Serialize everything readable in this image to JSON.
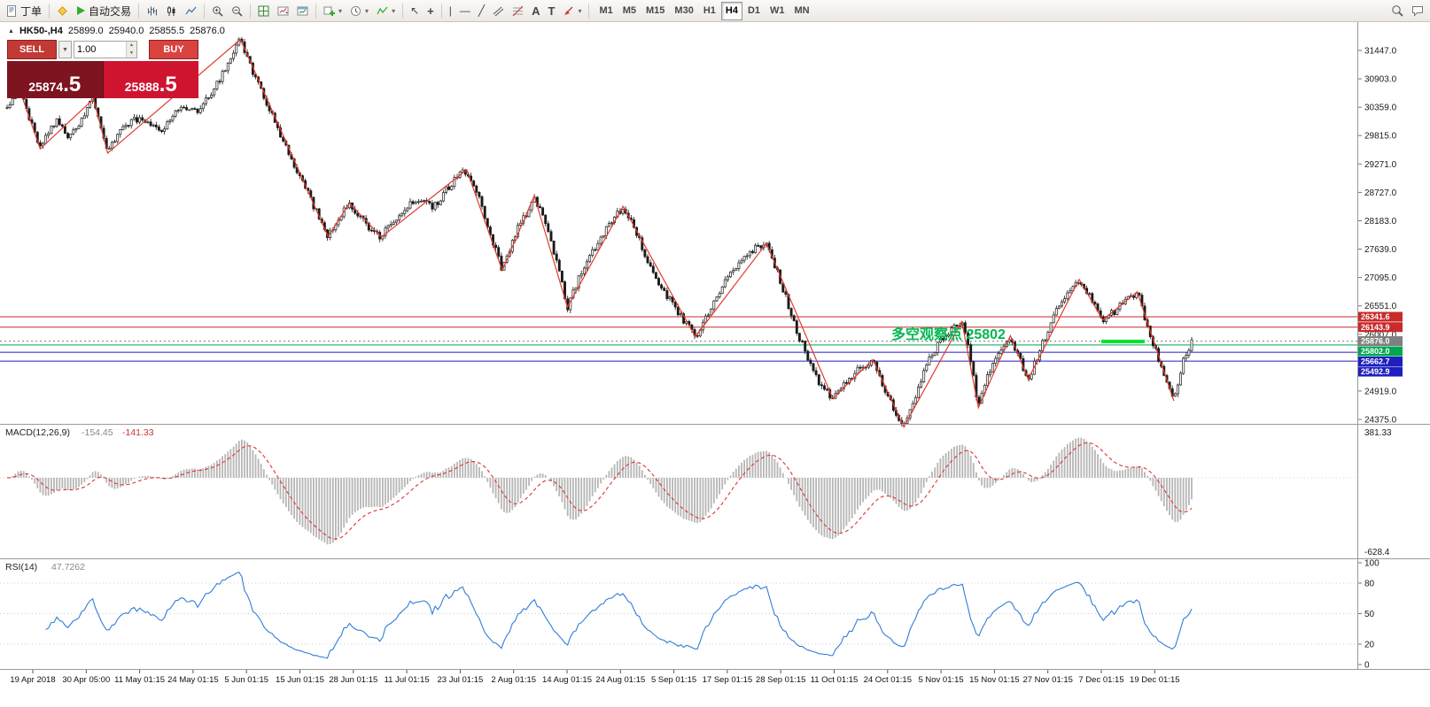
{
  "toolbar": {
    "new_order_label": "丁单",
    "autotrading_label": "自动交易",
    "timeframes": [
      "M1",
      "M5",
      "M15",
      "M30",
      "H1",
      "H4",
      "D1",
      "W1",
      "MN"
    ],
    "active_timeframe": "H4"
  },
  "trade_panel": {
    "sell_label": "SELL",
    "buy_label": "BUY",
    "volume": "1.00",
    "sell_price_int": "25874",
    "sell_price_frac": ".5",
    "buy_price_int": "25888",
    "buy_price_frac": ".5"
  },
  "chart_header": {
    "collapse_arrow": "▲",
    "symbol": "HK50-,H4",
    "open": "25899.0",
    "high": "25940.0",
    "low": "25855.5",
    "close": "25876.0"
  },
  "indicators": {
    "macd_name": "MACD(12,26,9)",
    "macd_value": "-154.45",
    "macd_signal": "-141.33",
    "rsi_name": "RSI(14)",
    "rsi_value": "47.7262"
  },
  "annotation": {
    "text": "多空观察点 25802",
    "color": "#00b850"
  },
  "axes": {
    "price_ticks": [
      "31447.0",
      "30903.0",
      "30359.0",
      "29815.0",
      "29271.0",
      "28727.0",
      "28183.0",
      "27639.0",
      "27095.0",
      "26551.0",
      "26007.0",
      "25463.0",
      "24919.0",
      "24375.0"
    ],
    "macd_ticks": [
      "381.33",
      "-628.4"
    ],
    "rsi_ticks": [
      "100",
      "80",
      "50",
      "20",
      "0"
    ],
    "rsi_levels": [
      80,
      50,
      20
    ],
    "time_labels": [
      "19 Apr 2018",
      "30 Apr 05:00",
      "11 May 01:15",
      "24 May 01:15",
      "5 Jun 01:15",
      "15 Jun 01:15",
      "28 Jun 01:15",
      "11 Jul 01:15",
      "23 Jul 01:15",
      "2 Aug 01:15",
      "14 Aug 01:15",
      "24 Aug 01:15",
      "5 Sep 01:15",
      "17 Sep 01:15",
      "28 Sep 01:15",
      "11 Oct 01:15",
      "24 Oct 01:15",
      "5 Nov 01:15",
      "15 Nov 01:15",
      "27 Nov 01:15",
      "7 Dec 01:15",
      "19 Dec 01:15"
    ]
  },
  "levels": [
    {
      "price": 26341.6,
      "tag": "26341.6",
      "color": "#c92b2b",
      "style": "solid"
    },
    {
      "price": 26143.9,
      "tag": "26143.9",
      "color": "#c92b2b",
      "style": "solid"
    },
    {
      "price": 25876.0,
      "tag": "25876.0",
      "color": "#808080",
      "style": "dotted"
    },
    {
      "price": 25802.0,
      "tag": "25802.0",
      "color": "#00a651",
      "style": "solid"
    },
    {
      "price": 25662.7,
      "tag": "25662.7",
      "color": "#1f1fbf",
      "style": "solid"
    },
    {
      "price": 25492.9,
      "tag": "25492.9",
      "color": "#1f1fbf",
      "style": "solid"
    }
  ],
  "chart_data": {
    "type": "candlestick",
    "symbol": "HK50-",
    "timeframe": "H4",
    "price_range": [
      24290,
      31990
    ],
    "candle_count": 430,
    "price_path": [
      [
        0.0,
        30350
      ],
      [
        0.009,
        30800
      ],
      [
        0.028,
        29560
      ],
      [
        0.042,
        30150
      ],
      [
        0.052,
        29750
      ],
      [
        0.062,
        30100
      ],
      [
        0.073,
        30520
      ],
      [
        0.085,
        29480
      ],
      [
        0.1,
        30050
      ],
      [
        0.115,
        30150
      ],
      [
        0.13,
        29850
      ],
      [
        0.145,
        30350
      ],
      [
        0.16,
        30250
      ],
      [
        0.175,
        30700
      ],
      [
        0.197,
        31660
      ],
      [
        0.21,
        30900
      ],
      [
        0.222,
        30300
      ],
      [
        0.235,
        29600
      ],
      [
        0.25,
        28900
      ],
      [
        0.262,
        28300
      ],
      [
        0.271,
        27880
      ],
      [
        0.28,
        28250
      ],
      [
        0.289,
        28520
      ],
      [
        0.3,
        28200
      ],
      [
        0.308,
        28000
      ],
      [
        0.316,
        27870
      ],
      [
        0.33,
        28300
      ],
      [
        0.345,
        28600
      ],
      [
        0.36,
        28450
      ],
      [
        0.375,
        28900
      ],
      [
        0.388,
        29160
      ],
      [
        0.4,
        28500
      ],
      [
        0.41,
        27800
      ],
      [
        0.418,
        27230
      ],
      [
        0.428,
        27900
      ],
      [
        0.438,
        28300
      ],
      [
        0.445,
        28660
      ],
      [
        0.455,
        28100
      ],
      [
        0.465,
        27300
      ],
      [
        0.473,
        26530
      ],
      [
        0.483,
        27100
      ],
      [
        0.495,
        27600
      ],
      [
        0.508,
        28100
      ],
      [
        0.52,
        28460
      ],
      [
        0.532,
        27900
      ],
      [
        0.545,
        27200
      ],
      [
        0.558,
        26700
      ],
      [
        0.57,
        26300
      ],
      [
        0.581,
        25960
      ],
      [
        0.592,
        26400
      ],
      [
        0.603,
        26900
      ],
      [
        0.615,
        27300
      ],
      [
        0.628,
        27600
      ],
      [
        0.641,
        27750
      ],
      [
        0.652,
        27100
      ],
      [
        0.663,
        26300
      ],
      [
        0.675,
        25600
      ],
      [
        0.685,
        25100
      ],
      [
        0.697,
        24780
      ],
      [
        0.708,
        25100
      ],
      [
        0.72,
        25350
      ],
      [
        0.731,
        25520
      ],
      [
        0.74,
        25000
      ],
      [
        0.75,
        24500
      ],
      [
        0.757,
        24230
      ],
      [
        0.766,
        24800
      ],
      [
        0.776,
        25400
      ],
      [
        0.788,
        25900
      ],
      [
        0.797,
        26100
      ],
      [
        0.806,
        26250
      ],
      [
        0.813,
        25600
      ],
      [
        0.82,
        24600
      ],
      [
        0.828,
        25200
      ],
      [
        0.838,
        25700
      ],
      [
        0.847,
        25980
      ],
      [
        0.855,
        25500
      ],
      [
        0.862,
        25150
      ],
      [
        0.872,
        25700
      ],
      [
        0.882,
        26300
      ],
      [
        0.893,
        26700
      ],
      [
        0.905,
        27060
      ],
      [
        0.915,
        26700
      ],
      [
        0.925,
        26280
      ],
      [
        0.935,
        26450
      ],
      [
        0.945,
        26650
      ],
      [
        0.954,
        26820
      ],
      [
        0.965,
        26000
      ],
      [
        0.975,
        25300
      ],
      [
        0.985,
        24730
      ],
      [
        0.992,
        25450
      ],
      [
        1.0,
        25876
      ]
    ],
    "zigzag": [
      [
        0.009,
        30800
      ],
      [
        0.028,
        29560
      ],
      [
        0.073,
        30520
      ],
      [
        0.085,
        29480
      ],
      [
        0.197,
        31660
      ],
      [
        0.271,
        27880
      ],
      [
        0.289,
        28520
      ],
      [
        0.316,
        27870
      ],
      [
        0.388,
        29160
      ],
      [
        0.418,
        27230
      ],
      [
        0.445,
        28660
      ],
      [
        0.473,
        26530
      ],
      [
        0.52,
        28460
      ],
      [
        0.581,
        25960
      ],
      [
        0.641,
        27750
      ],
      [
        0.697,
        24780
      ],
      [
        0.731,
        25520
      ],
      [
        0.757,
        24230
      ],
      [
        0.806,
        26250
      ],
      [
        0.82,
        24600
      ],
      [
        0.847,
        25980
      ],
      [
        0.862,
        25150
      ],
      [
        0.905,
        27060
      ],
      [
        0.925,
        26280
      ],
      [
        0.954,
        26820
      ],
      [
        0.985,
        24730
      ]
    ],
    "macd_range": [
      -628.4,
      381.33
    ],
    "rsi_range": [
      0,
      100
    ]
  }
}
